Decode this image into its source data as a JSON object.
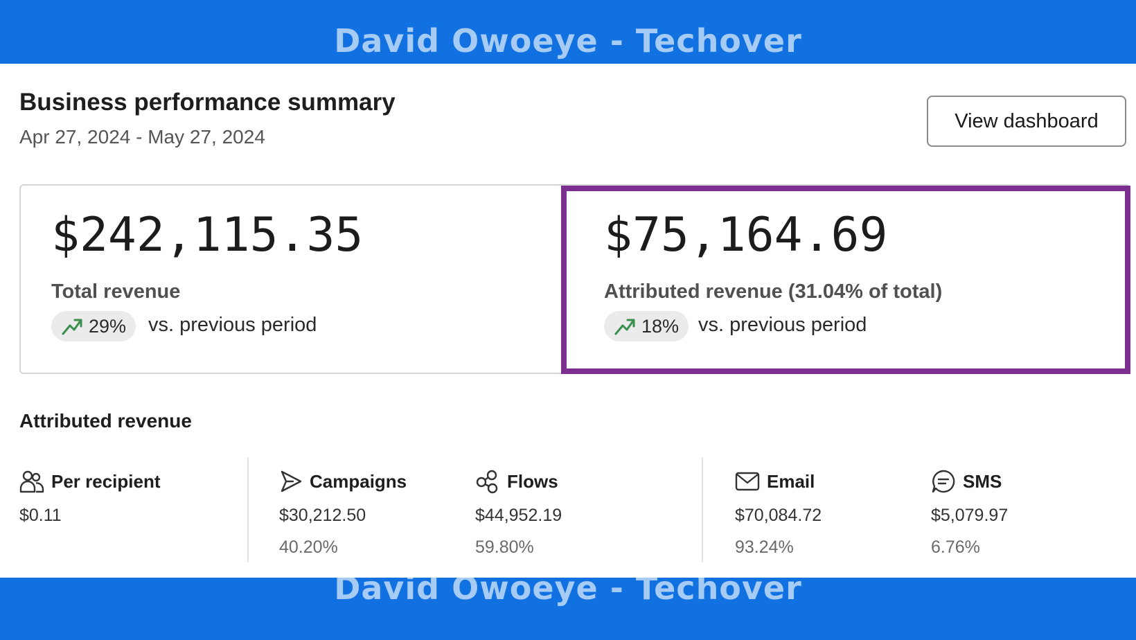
{
  "watermark": {
    "text": "David Owoeye - Techover"
  },
  "header": {
    "title": "Business performance summary",
    "date_range": "Apr 27, 2024 - May 27, 2024",
    "view_dashboard_label": "View dashboard"
  },
  "total_revenue": {
    "value": "$242,115.35",
    "label": "Total revenue",
    "change": "29%",
    "comparison": "vs. previous period",
    "trend_icon": "trending-up-icon"
  },
  "attributed_revenue": {
    "value": "$75,164.69",
    "label": "Attributed revenue (31.04% of total)",
    "change": "18%",
    "comparison": "vs. previous period",
    "trend_icon": "trending-up-icon"
  },
  "breakdown": {
    "title": "Attributed revenue",
    "per_recipient": {
      "label": "Per recipient",
      "value": "$0.11",
      "icon": "users-icon"
    },
    "campaigns": {
      "label": "Campaigns",
      "value": "$30,212.50",
      "percent": "40.20%",
      "icon": "send-icon"
    },
    "flows": {
      "label": "Flows",
      "value": "$44,952.19",
      "percent": "59.80%",
      "icon": "flows-icon"
    },
    "email": {
      "label": "Email",
      "value": "$70,084.72",
      "percent": "93.24%",
      "icon": "mail-icon"
    },
    "sms": {
      "label": "SMS",
      "value": "$5,079.97",
      "percent": "6.76%",
      "icon": "chat-icon"
    }
  },
  "colors": {
    "banner": "#1271e0",
    "highlight_border": "#7b2f8e",
    "trend_up": "#3a8f4f"
  }
}
